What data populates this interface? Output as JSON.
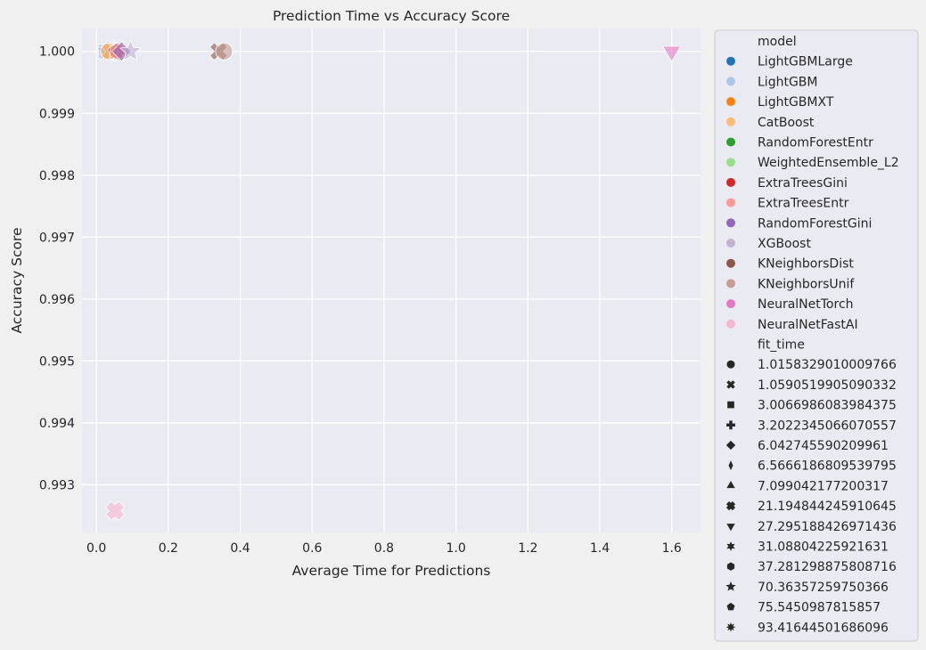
{
  "chart_data": {
    "type": "scatter",
    "title": "Prediction Time vs Accuracy Score",
    "xlabel": "Average Time for Predictions",
    "ylabel": "Accuracy Score",
    "xlim": [
      -0.04,
      1.68
    ],
    "ylim": [
      0.99223,
      1.00037
    ],
    "xticks": [
      "0.0",
      "0.2",
      "0.4",
      "0.6",
      "0.8",
      "1.0",
      "1.2",
      "1.4",
      "1.6"
    ],
    "yticks": [
      "0.993",
      "0.994",
      "0.995",
      "0.996",
      "0.997",
      "0.998",
      "0.999",
      "1.000"
    ],
    "grid": true,
    "legend_placement": "outside right",
    "hue_title": "model",
    "style_title": "fit_time",
    "series": [
      {
        "name": "LightGBMLarge",
        "color": "#1f77b4",
        "x": 0.03,
        "y": 1.0,
        "marker": "star"
      },
      {
        "name": "LightGBM",
        "color": "#aec7e8",
        "x": 0.025,
        "y": 1.0,
        "marker": "square"
      },
      {
        "name": "LightGBMXT",
        "color": "#ff7f0e",
        "x": 0.04,
        "y": 1.0,
        "marker": "x"
      },
      {
        "name": "CatBoost",
        "color": "#ffbb78",
        "x": 0.035,
        "y": 1.0,
        "marker": "circle"
      },
      {
        "name": "RandomForestEntr",
        "color": "#2ca02c",
        "x": 0.065,
        "y": 1.0,
        "marker": "plus"
      },
      {
        "name": "WeightedEnsemble_L2",
        "color": "#98df8a",
        "x": 0.05,
        "y": 1.0,
        "marker": "thin_diamond"
      },
      {
        "name": "ExtraTreesGini",
        "color": "#d62728",
        "x": 0.055,
        "y": 1.0,
        "marker": "pentagon"
      },
      {
        "name": "ExtraTreesEntr",
        "color": "#ff9896",
        "x": 0.06,
        "y": 1.0,
        "marker": "hexagon"
      },
      {
        "name": "RandomForestGini",
        "color": "#9467bd",
        "x": 0.07,
        "y": 1.0,
        "marker": "diamond"
      },
      {
        "name": "XGBoost",
        "color": "#c5b0d5",
        "x": 0.095,
        "y": 1.0,
        "marker": "star"
      },
      {
        "name": "KNeighborsDist",
        "color": "#8c564b",
        "x": 0.34,
        "y": 1.0,
        "marker": "x"
      },
      {
        "name": "KNeighborsUnif",
        "color": "#c49c94",
        "x": 0.355,
        "y": 1.0,
        "marker": "circle"
      },
      {
        "name": "NeuralNetTorch",
        "color": "#e377c2",
        "x": 1.6,
        "y": 1.0,
        "marker": "triangle_down"
      },
      {
        "name": "NeuralNetFastAI",
        "color": "#f7b6d2",
        "x": 0.052,
        "y": 0.99258,
        "marker": "tri_x"
      }
    ],
    "fit_time_styles": [
      {
        "label": "1.0158329010009766",
        "marker": "circle"
      },
      {
        "label": "1.0590519905090332",
        "marker": "x"
      },
      {
        "label": "3.0066986083984375",
        "marker": "square"
      },
      {
        "label": "3.2022345066070557",
        "marker": "plus"
      },
      {
        "label": "6.042745590209961",
        "marker": "diamond"
      },
      {
        "label": "6.5666186809539795",
        "marker": "thin_diamond"
      },
      {
        "label": "7.099042177200317",
        "marker": "triangle_up"
      },
      {
        "label": "21.194844245910645",
        "marker": "tri_x"
      },
      {
        "label": "27.295188426971436",
        "marker": "triangle_down"
      },
      {
        "label": "31.08804225921631",
        "marker": "star6"
      },
      {
        "label": "37.281298875808716",
        "marker": "hexagon"
      },
      {
        "label": "70.36357259750366",
        "marker": "star"
      },
      {
        "label": "75.5450987815857",
        "marker": "pentagon"
      },
      {
        "label": "93.41644501686096",
        "marker": "star8"
      }
    ]
  }
}
